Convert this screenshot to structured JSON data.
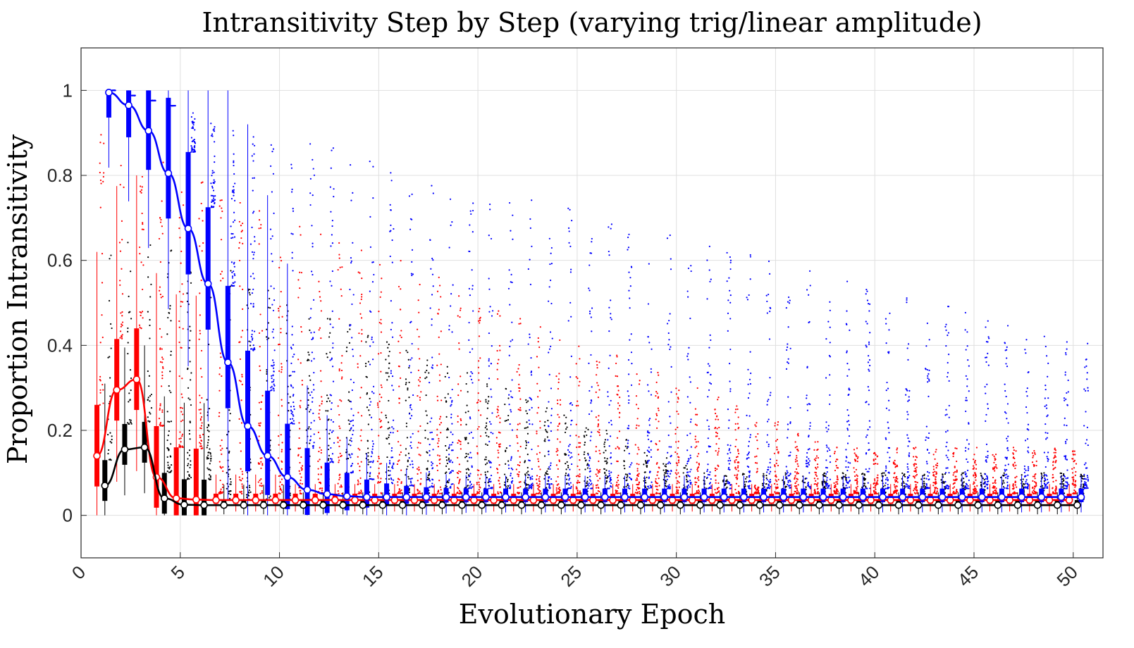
{
  "chart_data": {
    "type": "box",
    "title": "Intransitivity Step by Step (varying trig/linear amplitude)",
    "xlabel": "Evolutionary Epoch",
    "ylabel": "Proportion Intransitivity",
    "xlim": [
      0,
      51.5
    ],
    "ylim": [
      -0.1,
      1.1
    ],
    "xticks": [
      0,
      5,
      10,
      15,
      20,
      25,
      30,
      35,
      40,
      45,
      50
    ],
    "yticks": [
      0,
      0.2,
      0.4,
      0.6,
      0.8,
      1
    ],
    "grid": true,
    "legend": "none",
    "series": [
      {
        "color": "#ff0000",
        "offset": -0.2,
        "medians": [
          0.14,
          0.295,
          0.32,
          0.09,
          0.04,
          0.037,
          0.036,
          0.036,
          0.036,
          0.036,
          0.036,
          0.036,
          0.036,
          0.036,
          0.036,
          0.036,
          0.036,
          0.036,
          0.036,
          0.036,
          0.036,
          0.036,
          0.036,
          0.036,
          0.036,
          0.036,
          0.036,
          0.036,
          0.036,
          0.036,
          0.036,
          0.036,
          0.036,
          0.036,
          0.036,
          0.036,
          0.036,
          0.036,
          0.036,
          0.036,
          0.036,
          0.036,
          0.036,
          0.036,
          0.036,
          0.036,
          0.036,
          0.036,
          0.036,
          0.036
        ]
      },
      {
        "color": "#000000",
        "offset": 0.2,
        "medians": [
          0.07,
          0.155,
          0.16,
          0.04,
          0.025,
          0.024,
          0.024,
          0.024,
          0.024,
          0.024,
          0.024,
          0.024,
          0.024,
          0.024,
          0.024,
          0.024,
          0.024,
          0.024,
          0.024,
          0.024,
          0.024,
          0.024,
          0.024,
          0.024,
          0.024,
          0.024,
          0.024,
          0.024,
          0.024,
          0.024,
          0.024,
          0.024,
          0.024,
          0.024,
          0.024,
          0.024,
          0.024,
          0.024,
          0.024,
          0.024,
          0.024,
          0.024,
          0.024,
          0.024,
          0.024,
          0.024,
          0.024,
          0.024,
          0.024,
          0.024
        ]
      },
      {
        "color": "#0000ff",
        "offset": 0.4,
        "medians": [
          0.995,
          0.965,
          0.905,
          0.805,
          0.675,
          0.545,
          0.36,
          0.21,
          0.14,
          0.09,
          0.06,
          0.05,
          0.045,
          0.043,
          0.043,
          0.043,
          0.043,
          0.043,
          0.043,
          0.043,
          0.043,
          0.043,
          0.043,
          0.043,
          0.043,
          0.043,
          0.043,
          0.043,
          0.043,
          0.043,
          0.043,
          0.043,
          0.043,
          0.043,
          0.043,
          0.043,
          0.043,
          0.043,
          0.043,
          0.043,
          0.043,
          0.043,
          0.043,
          0.043,
          0.043,
          0.043,
          0.043,
          0.043,
          0.043,
          0.043
        ]
      }
    ]
  }
}
